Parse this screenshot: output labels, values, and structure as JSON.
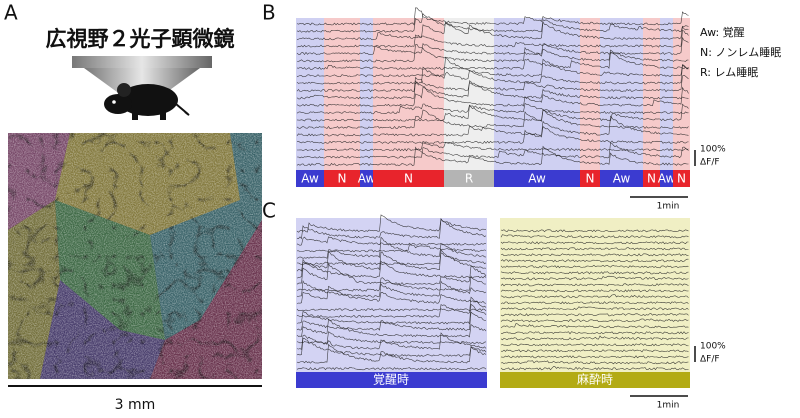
{
  "panel_a": {
    "label": "A",
    "title": "広視野２光子顕微鏡",
    "scale_label": "3 mm"
  },
  "panel_b": {
    "label": "B",
    "legend": [
      "Aw: 覚醒",
      "N: ノンレム睡眠",
      "R: レム睡眠"
    ],
    "states": [
      "Aw",
      "N",
      "Aw",
      "N",
      "R",
      "Aw",
      "N",
      "Aw",
      "N",
      "Aw",
      "N"
    ],
    "scale_y": [
      "100%",
      "ΔF/F"
    ],
    "scale_x": "1min"
  },
  "panel_c": {
    "label": "C",
    "conditions": [
      "覚醒時",
      "麻酔時"
    ],
    "scale_y": [
      "100%",
      "ΔF/F"
    ],
    "scale_x": "1min"
  }
}
